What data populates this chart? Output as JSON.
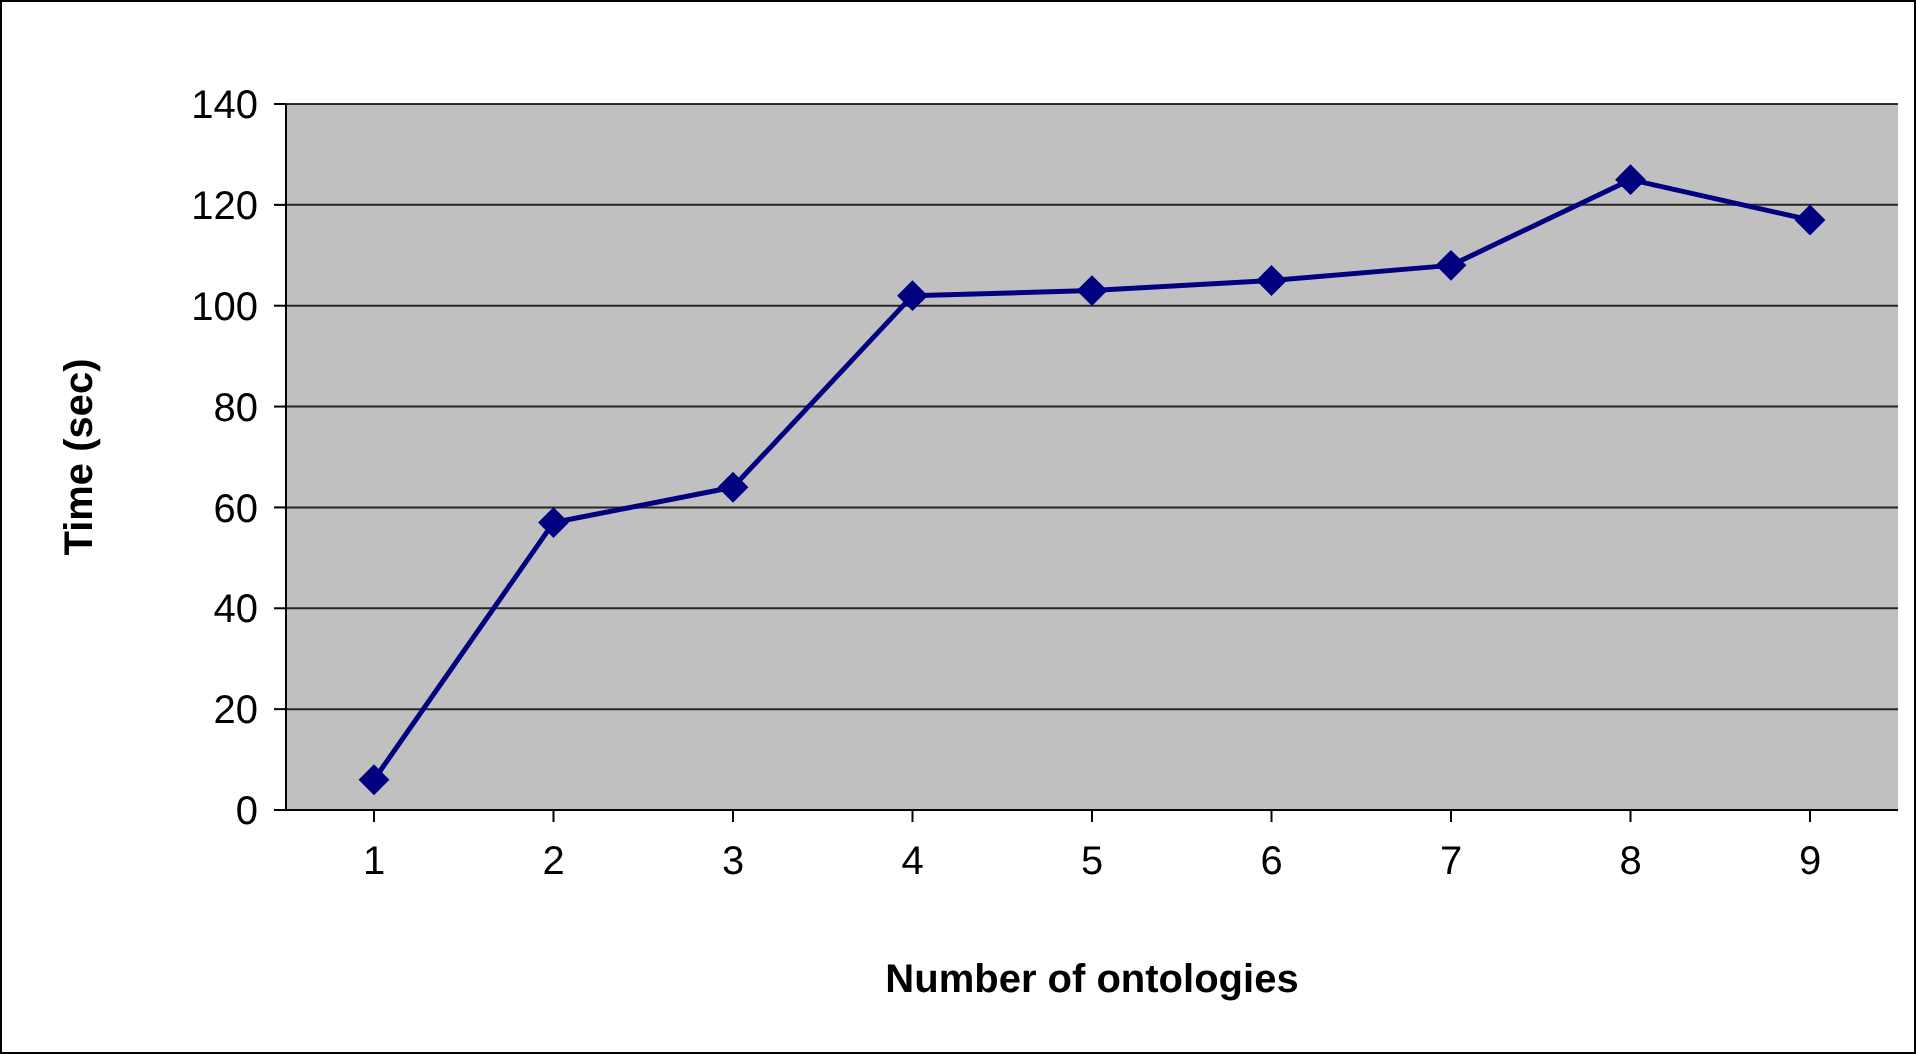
{
  "chart_data": {
    "type": "line",
    "xlabel": "Number of ontologies",
    "ylabel": "Time (sec)",
    "categories": [
      "1",
      "2",
      "3",
      "4",
      "5",
      "6",
      "7",
      "8",
      "9"
    ],
    "series": [
      {
        "color": "#000080",
        "values": [
          6,
          57,
          64,
          102,
          103,
          105,
          108,
          125,
          117
        ]
      }
    ],
    "ylim": [
      0,
      140
    ],
    "yticks": [
      0,
      20,
      40,
      60,
      80,
      100,
      120,
      140
    ],
    "grid": "y",
    "marker": "diamond",
    "line_style": "solid"
  }
}
